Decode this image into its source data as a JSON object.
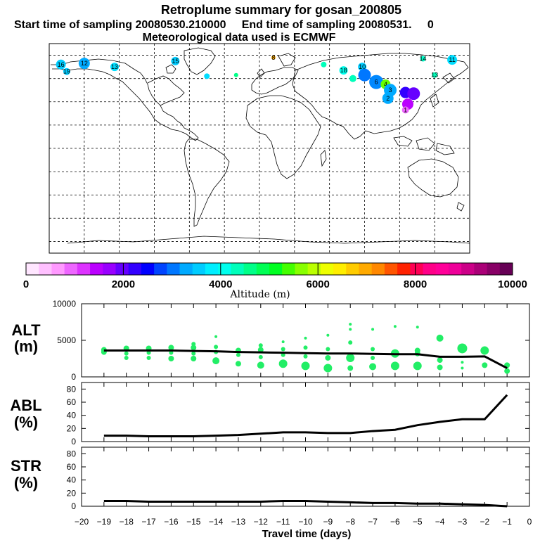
{
  "header": {
    "title": "Retroplume summary for gosan_200805",
    "sampling_line": "Start time of sampling 20080530.210000     End time of sampling 20080531.     0",
    "met_line": "Meteorological data used is ECMWF"
  },
  "colorbar": {
    "colors": [
      "#ffe6ff",
      "#ffc0ff",
      "#ff99ff",
      "#ee66ff",
      "#dd33ff",
      "#bb00ff",
      "#9900ff",
      "#6600ff",
      "#3300ff",
      "#0000ff",
      "#0044ff",
      "#0077ff",
      "#00aaff",
      "#00ccff",
      "#00eeff",
      "#00ffee",
      "#00ffbb",
      "#00ff88",
      "#00ff55",
      "#00ff22",
      "#44ff00",
      "#88ff00",
      "#bbff00",
      "#eeff00",
      "#ffee00",
      "#ffcc00",
      "#ffaa00",
      "#ff8800",
      "#ff5500",
      "#ff2200",
      "#ff0055",
      "#ff0088",
      "#ff0099",
      "#ee0099",
      "#cc0088",
      "#aa0077",
      "#880066",
      "#660055"
    ],
    "tick_labels": [
      "0",
      "2000",
      "4000",
      "6000",
      "8000",
      "10000"
    ],
    "label": "Altitude (m)"
  },
  "map": {
    "clusters": [
      {
        "lon": -170,
        "lat": 72,
        "num": "16",
        "color": "#00ccff",
        "r": 7
      },
      {
        "lon": -165,
        "lat": 66,
        "num": "19",
        "color": "#00ccff",
        "r": 5
      },
      {
        "lon": -150,
        "lat": 73,
        "num": "12",
        "color": "#00aaff",
        "r": 8
      },
      {
        "lon": -124,
        "lat": 70,
        "num": "13",
        "color": "#00ddff",
        "r": 6
      },
      {
        "lon": -72,
        "lat": 75,
        "num": "15",
        "color": "#00ccff",
        "r": 6
      },
      {
        "lon": -45,
        "lat": 62,
        "num": "",
        "color": "#00ddff",
        "r": 4
      },
      {
        "lon": -20,
        "lat": 63,
        "num": "",
        "color": "#00ff88",
        "r": 3
      },
      {
        "lon": 12,
        "lat": 78,
        "num": "8",
        "color": "#ffaa00",
        "r": 3
      },
      {
        "lon": 55,
        "lat": 72,
        "num": "",
        "color": "#00ffbb",
        "r": 4
      },
      {
        "lon": 72,
        "lat": 67,
        "num": "18",
        "color": "#00ffee",
        "r": 6
      },
      {
        "lon": 80,
        "lat": 60,
        "num": "",
        "color": "#00ffbb",
        "r": 5
      },
      {
        "lon": 88,
        "lat": 70,
        "num": "10",
        "color": "#00ccff",
        "r": 6
      },
      {
        "lon": 90,
        "lat": 63,
        "num": "",
        "color": "#0077ff",
        "r": 9
      },
      {
        "lon": 100,
        "lat": 57,
        "num": "6",
        "color": "#0088ff",
        "r": 10
      },
      {
        "lon": 108,
        "lat": 55,
        "num": "4",
        "color": "#66ff00",
        "r": 7
      },
      {
        "lon": 112,
        "lat": 50,
        "num": "3",
        "color": "#00aaff",
        "r": 9
      },
      {
        "lon": 110,
        "lat": 43,
        "num": "2",
        "color": "#00aaff",
        "r": 8
      },
      {
        "lon": 125,
        "lat": 48,
        "num": "",
        "color": "#3300ff",
        "r": 8
      },
      {
        "lon": 132,
        "lat": 47,
        "num": "",
        "color": "#6600ff",
        "r": 9
      },
      {
        "lon": 127,
        "lat": 38,
        "num": "",
        "color": "#bb00ff",
        "r": 8
      },
      {
        "lon": 125,
        "lat": 33,
        "num": "1",
        "color": "#ee66ff",
        "r": 5
      },
      {
        "lon": 140,
        "lat": 77,
        "num": "14",
        "color": "#00ffcc",
        "r": 4
      },
      {
        "lon": 165,
        "lat": 76,
        "num": "11",
        "color": "#00ddff",
        "r": 7
      },
      {
        "lon": 150,
        "lat": 63,
        "num": "13",
        "color": "#00ffbb",
        "r": 4
      }
    ]
  },
  "panel_labels": {
    "alt_top": "ALT",
    "alt_bottom": "(m)",
    "abl_top": "ABL",
    "abl_bottom": "(%)",
    "str_top": "STR",
    "str_bottom": "(%)"
  },
  "x_axis": {
    "label": "Travel time (days)",
    "ticks": [
      "−20",
      "−19",
      "−18",
      "−17",
      "−16",
      "−15",
      "−14",
      "−13",
      "−12",
      "−11",
      "−10",
      "−9",
      "−8",
      "−7",
      "−6",
      "−5",
      "−4",
      "−3",
      "−2",
      "−1",
      "0"
    ]
  },
  "chart_data": [
    {
      "type": "scatter",
      "title": "ALT",
      "ylabel": "(m)",
      "xlabel": "Travel time (days)",
      "xlim": [
        -20,
        0
      ],
      "ylim": [
        0,
        10000
      ],
      "yticks": [
        "0",
        "5000",
        "10000"
      ],
      "mean_line": {
        "x": [
          -19,
          -18,
          -17,
          -16,
          -15,
          -14,
          -13,
          -12,
          -11,
          -10,
          -9,
          -8,
          -7,
          -6,
          -5,
          -4,
          -3,
          -2,
          -1
        ],
        "y": [
          3600,
          3600,
          3600,
          3600,
          3550,
          3500,
          3400,
          3350,
          3300,
          3250,
          3200,
          3200,
          3150,
          3100,
          3100,
          2750,
          2750,
          2800,
          1200
        ]
      },
      "points": [
        {
          "x": -19,
          "y": 3700,
          "r": 4
        },
        {
          "x": -19,
          "y": 3400,
          "r": 4
        },
        {
          "x": -18,
          "y": 3900,
          "r": 4
        },
        {
          "x": -18,
          "y": 3200,
          "r": 3
        },
        {
          "x": -18,
          "y": 2600,
          "r": 3
        },
        {
          "x": -17,
          "y": 3900,
          "r": 4
        },
        {
          "x": -17,
          "y": 3300,
          "r": 3
        },
        {
          "x": -17,
          "y": 2600,
          "r": 3
        },
        {
          "x": -16,
          "y": 4000,
          "r": 4
        },
        {
          "x": -16,
          "y": 3300,
          "r": 3
        },
        {
          "x": -16,
          "y": 2500,
          "r": 4
        },
        {
          "x": -15,
          "y": 4500,
          "r": 3
        },
        {
          "x": -15,
          "y": 4000,
          "r": 4
        },
        {
          "x": -15,
          "y": 3200,
          "r": 3
        },
        {
          "x": -15,
          "y": 2500,
          "r": 4
        },
        {
          "x": -14,
          "y": 5500,
          "r": 2
        },
        {
          "x": -14,
          "y": 4100,
          "r": 3
        },
        {
          "x": -14,
          "y": 3400,
          "r": 3
        },
        {
          "x": -14,
          "y": 2200,
          "r": 5
        },
        {
          "x": -13,
          "y": 3600,
          "r": 4
        },
        {
          "x": -13,
          "y": 3000,
          "r": 3
        },
        {
          "x": -13,
          "y": 1800,
          "r": 4
        },
        {
          "x": -12,
          "y": 4300,
          "r": 3
        },
        {
          "x": -12,
          "y": 3700,
          "r": 4
        },
        {
          "x": -12,
          "y": 2700,
          "r": 3
        },
        {
          "x": -12,
          "y": 1600,
          "r": 5
        },
        {
          "x": -11,
          "y": 4800,
          "r": 2
        },
        {
          "x": -11,
          "y": 3800,
          "r": 3
        },
        {
          "x": -11,
          "y": 3000,
          "r": 3
        },
        {
          "x": -11,
          "y": 1800,
          "r": 6
        },
        {
          "x": -10,
          "y": 5300,
          "r": 2
        },
        {
          "x": -10,
          "y": 4000,
          "r": 3
        },
        {
          "x": -10,
          "y": 2800,
          "r": 3
        },
        {
          "x": -10,
          "y": 1500,
          "r": 6
        },
        {
          "x": -9,
          "y": 5700,
          "r": 2
        },
        {
          "x": -9,
          "y": 3800,
          "r": 3
        },
        {
          "x": -9,
          "y": 2600,
          "r": 4
        },
        {
          "x": -9,
          "y": 1200,
          "r": 6
        },
        {
          "x": -8,
          "y": 7200,
          "r": 2
        },
        {
          "x": -8,
          "y": 6500,
          "r": 2
        },
        {
          "x": -8,
          "y": 4700,
          "r": 3
        },
        {
          "x": -8,
          "y": 2600,
          "r": 6
        },
        {
          "x": -8,
          "y": 1200,
          "r": 4
        },
        {
          "x": -7,
          "y": 6500,
          "r": 2
        },
        {
          "x": -7,
          "y": 3800,
          "r": 3
        },
        {
          "x": -7,
          "y": 2600,
          "r": 3
        },
        {
          "x": -7,
          "y": 1400,
          "r": 5
        },
        {
          "x": -6,
          "y": 6900,
          "r": 2
        },
        {
          "x": -6,
          "y": 3200,
          "r": 6
        },
        {
          "x": -6,
          "y": 1500,
          "r": 6
        },
        {
          "x": -5,
          "y": 6800,
          "r": 2
        },
        {
          "x": -5,
          "y": 3600,
          "r": 4
        },
        {
          "x": -5,
          "y": 3200,
          "r": 4
        },
        {
          "x": -5,
          "y": 1500,
          "r": 6
        },
        {
          "x": -4,
          "y": 5300,
          "r": 5
        },
        {
          "x": -4,
          "y": 2300,
          "r": 4
        },
        {
          "x": -4,
          "y": 1300,
          "r": 4
        },
        {
          "x": -3,
          "y": 3900,
          "r": 7
        },
        {
          "x": -3,
          "y": 2000,
          "r": 2
        },
        {
          "x": -3,
          "y": 1200,
          "r": 2
        },
        {
          "x": -2,
          "y": 3600,
          "r": 6
        },
        {
          "x": -2,
          "y": 1600,
          "r": 4
        },
        {
          "x": -1,
          "y": 1600,
          "r": 4
        },
        {
          "x": -1,
          "y": 800,
          "r": 4
        }
      ]
    },
    {
      "type": "line",
      "title": "ABL",
      "ylabel": "(%)",
      "xlabel": "Travel time (days)",
      "xlim": [
        -20,
        0
      ],
      "ylim": [
        0,
        90
      ],
      "yticks": [
        "0",
        "20",
        "40",
        "60",
        "80"
      ],
      "x": [
        -19,
        -18,
        -17,
        -16,
        -15,
        -14,
        -13,
        -12,
        -11,
        -10,
        -9,
        -8,
        -7,
        -6,
        -5,
        -4,
        -3,
        -2,
        -1
      ],
      "y": [
        9,
        9,
        8,
        8,
        8,
        9,
        10,
        12,
        14,
        14,
        13,
        13,
        16,
        18,
        25,
        30,
        34,
        34,
        71
      ]
    },
    {
      "type": "line",
      "title": "STR",
      "ylabel": "(%)",
      "xlabel": "Travel time (days)",
      "xlim": [
        -20,
        0
      ],
      "ylim": [
        0,
        90
      ],
      "yticks": [
        "0",
        "20",
        "40",
        "60",
        "80"
      ],
      "x": [
        -19,
        -18,
        -17,
        -16,
        -15,
        -14,
        -13,
        -12,
        -11,
        -10,
        -9,
        -8,
        -7,
        -6,
        -5,
        -4,
        -3,
        -2,
        -1
      ],
      "y": [
        8,
        8,
        7,
        7,
        7,
        7,
        7,
        7,
        8,
        8,
        7,
        6,
        5,
        5,
        4,
        4,
        3,
        2,
        0
      ]
    }
  ]
}
